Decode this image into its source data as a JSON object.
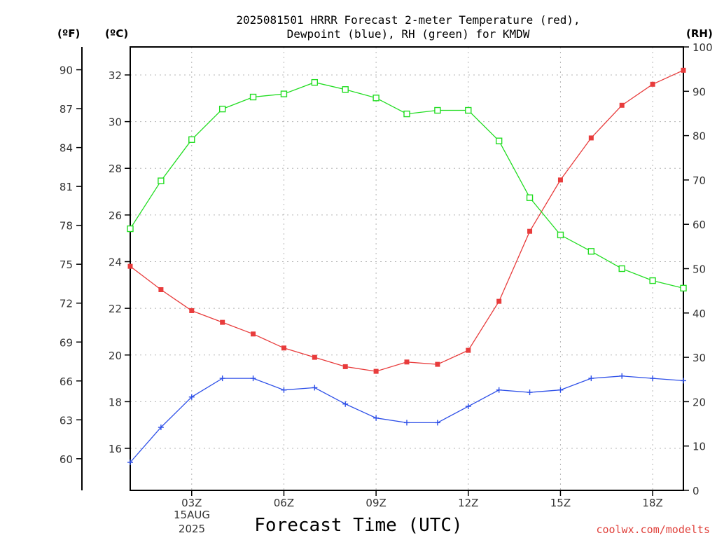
{
  "chart_data": {
    "type": "line",
    "title_lines": [
      "2025081501 HRRR Forecast 2-meter Temperature (red),",
      "Dewpoint (blue), RH (green) for KMDW"
    ],
    "units": {
      "fahrenheit": "(ºF)",
      "celsius": "(ºC)",
      "rh": "(RH)"
    },
    "xlabel": "Forecast Time (UTC)",
    "credit": "coolwx.com/modelts",
    "x": [
      1,
      2,
      3,
      4,
      5,
      6,
      7,
      8,
      9,
      10,
      11,
      12,
      13,
      14,
      15,
      16,
      17,
      18,
      19
    ],
    "xlim": [
      1,
      19
    ],
    "x_ticks": [
      {
        "x": 3,
        "label": "03Z"
      },
      {
        "x": 6,
        "label": "06Z"
      },
      {
        "x": 9,
        "label": "09Z"
      },
      {
        "x": 12,
        "label": "12Z"
      },
      {
        "x": 15,
        "label": "15Z"
      },
      {
        "x": 18,
        "label": "18Z"
      }
    ],
    "x_date_line1": "15AUG",
    "x_date_line2": "2025",
    "celsius_axis": {
      "ylim": [
        14.2,
        33.2
      ],
      "ticks": [
        "16",
        "18",
        "20",
        "22",
        "24",
        "26",
        "28",
        "30",
        "32"
      ]
    },
    "fahrenheit_axis": {
      "ticks": [
        "60",
        "63",
        "66",
        "69",
        "72",
        "75",
        "78",
        "81",
        "84",
        "87",
        "90"
      ]
    },
    "rh_axis": {
      "ylim": [
        0,
        100
      ],
      "ticks": [
        "0",
        "10",
        "20",
        "30",
        "40",
        "50",
        "60",
        "70",
        "80",
        "90",
        "100"
      ]
    },
    "grid": true,
    "series": [
      {
        "name": "Temperature",
        "color": "#e83c3c",
        "marker": "filled-square",
        "axis": "celsius",
        "values": [
          23.8,
          22.8,
          21.9,
          21.4,
          20.9,
          20.3,
          19.9,
          19.5,
          19.3,
          19.7,
          19.6,
          20.2,
          22.3,
          25.3,
          27.5,
          29.3,
          30.7,
          31.6,
          32.2
        ]
      },
      {
        "name": "Dewpoint",
        "color": "#2d4fe8",
        "marker": "plus",
        "axis": "celsius",
        "values": [
          15.4,
          16.9,
          18.2,
          19.0,
          19.0,
          18.5,
          18.6,
          17.9,
          17.3,
          17.1,
          17.1,
          17.8,
          18.5,
          18.4,
          18.5,
          19.0,
          19.1,
          19.0,
          18.9
        ]
      },
      {
        "name": "RH",
        "color": "#22dd22",
        "marker": "open-square",
        "axis": "rh",
        "values": [
          59.0,
          69.8,
          79.1,
          86.0,
          88.7,
          89.4,
          92.0,
          90.4,
          88.5,
          84.9,
          85.7,
          85.7,
          78.8,
          66.0,
          57.6,
          53.9,
          50.0,
          47.3,
          45.6
        ]
      }
    ]
  }
}
